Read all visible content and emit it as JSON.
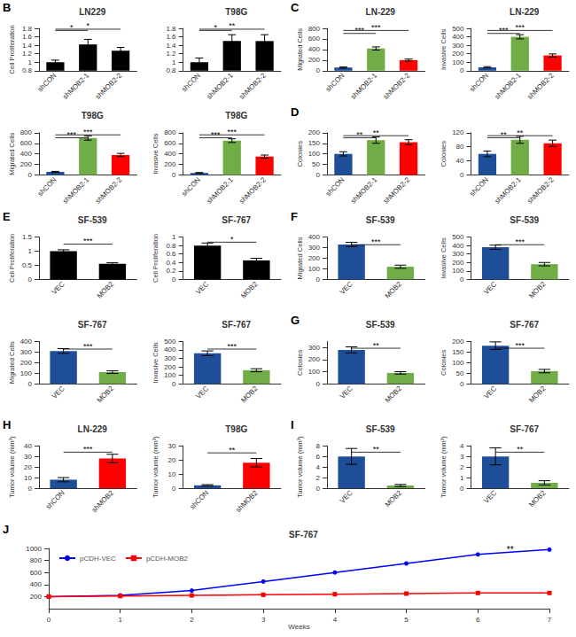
{
  "chart_data": [
    {
      "type": "bar",
      "title": "LN229",
      "ylabel": "Cell Proliferation",
      "categories": [
        "shCON",
        "shMOB2-1",
        "shMOB2-2"
      ],
      "values": [
        1.0,
        1.42,
        1.27
      ],
      "errors": [
        0.05,
        0.12,
        0.08
      ],
      "color": "#000000",
      "ylim": [
        0.8,
        1.8
      ],
      "yticks": [
        0.8,
        1,
        1.2,
        1.4,
        1.6,
        1.8
      ],
      "grid": false,
      "annotations": [
        {
          "text": "B"
        },
        {
          "text": "*",
          "from": "shCON",
          "to": "shMOB2-1",
          "y": 1.75
        },
        {
          "text": "*",
          "from": "shCON",
          "to": "shMOB2-2",
          "y": 1.78
        }
      ]
    },
    {
      "type": "bar",
      "title": "T98G",
      "categories": [
        "shCON",
        "shMOB2-1",
        "shMOB2-2"
      ],
      "values": [
        1.0,
        1.5,
        1.5
      ],
      "errors": [
        0.1,
        0.15,
        0.15
      ],
      "color": "#000000",
      "ylim": [
        0.8,
        1.8
      ],
      "yticks": [
        0.8,
        1,
        1.2,
        1.4,
        1.6,
        1.8
      ],
      "grid": false,
      "annotations": [
        {
          "text": "*",
          "from": "shCON",
          "to": "shMOB2-1",
          "y": 1.75
        },
        {
          "text": "**",
          "from": "shCON",
          "to": "shMOB2-2",
          "y": 1.78
        }
      ]
    },
    {
      "type": "bar",
      "title": "LN-229",
      "ylabel": "Migrated Cells",
      "categories": [
        "shCON",
        "shMOB2-1",
        "shMOB2-2"
      ],
      "values": [
        60,
        420,
        200
      ],
      "errors": [
        10,
        30,
        20
      ],
      "colors": [
        "#1f4e99",
        "#70ad47",
        "#ff0000"
      ],
      "ylim": [
        0,
        800
      ],
      "yticks": [
        0,
        200,
        400,
        600,
        800
      ],
      "grid": false,
      "annotations": [
        {
          "text": "C"
        },
        {
          "text": "***",
          "from": "shCON",
          "to": "shMOB2-1",
          "y": 704
        },
        {
          "text": "***",
          "from": "shCON",
          "to": "shMOB2-2",
          "y": 760
        }
      ]
    },
    {
      "type": "bar",
      "title": "LN-229",
      "ylabel": "Invasive Cells",
      "categories": [
        "shCON",
        "shMOB2-1",
        "shMOB2-2"
      ],
      "values": [
        40,
        400,
        180
      ],
      "errors": [
        8,
        25,
        18
      ],
      "colors": [
        "#1f4e99",
        "#70ad47",
        "#ff0000"
      ],
      "ylim": [
        0,
        500
      ],
      "yticks": [
        0,
        100,
        200,
        300,
        400,
        500
      ],
      "grid": false,
      "annotations": [
        {
          "text": "***",
          "from": "shCON",
          "to": "shMOB2-1",
          "y": 440
        },
        {
          "text": "***",
          "from": "shCON",
          "to": "shMOB2-2",
          "y": 475
        }
      ]
    },
    {
      "type": "bar",
      "title": "T98G",
      "ylabel": "Migrated Cells",
      "categories": [
        "shCON",
        "shMOB2-1",
        "shMOB2-2"
      ],
      "values": [
        60,
        700,
        380
      ],
      "errors": [
        10,
        40,
        30
      ],
      "colors": [
        "#1f4e99",
        "#70ad47",
        "#ff0000"
      ],
      "ylim": [
        0,
        800
      ],
      "yticks": [
        0,
        200,
        400,
        600,
        800
      ],
      "grid": false,
      "annotations": [
        {
          "text": "***",
          "from": "shCON",
          "to": "shMOB2-1",
          "y": 704
        },
        {
          "text": "***",
          "from": "shCON",
          "to": "shMOB2-2",
          "y": 760
        }
      ]
    },
    {
      "type": "bar",
      "title": "T98G",
      "ylabel": "Invasive Cells",
      "categories": [
        "shCON",
        "shMOB2-1",
        "shMOB2-2"
      ],
      "values": [
        40,
        650,
        350
      ],
      "errors": [
        8,
        35,
        28
      ],
      "colors": [
        "#1f4e99",
        "#70ad47",
        "#ff0000"
      ],
      "ylim": [
        0,
        800
      ],
      "yticks": [
        0,
        200,
        400,
        600,
        800
      ],
      "grid": false,
      "annotations": [
        {
          "text": "***",
          "from": "shCON",
          "to": "shMOB2-1",
          "y": 704
        },
        {
          "text": "***",
          "from": "shCON",
          "to": "shMOB2-2",
          "y": 760
        }
      ]
    },
    {
      "type": "bar",
      "ylabel": "Colonies",
      "categories": [
        "shCON",
        "shMOB2-1",
        "shMOB2-2"
      ],
      "values": [
        100,
        165,
        155
      ],
      "errors": [
        10,
        15,
        12
      ],
      "colors": [
        "#1f4e99",
        "#70ad47",
        "#ff0000"
      ],
      "ylim": [
        0,
        200
      ],
      "yticks": [
        0,
        50,
        100,
        150,
        200
      ],
      "grid": false,
      "annotations": [
        {
          "text": "D"
        },
        {
          "text": "**",
          "from": "shCON",
          "to": "shMOB2-1",
          "y": 176
        },
        {
          "text": "**",
          "from": "shCON",
          "to": "shMOB2-2",
          "y": 186
        }
      ]
    },
    {
      "type": "bar",
      "ylabel": "Colonies",
      "categories": [
        "shCON",
        "shMOB2-1",
        "shMOB2-2"
      ],
      "values": [
        60,
        100,
        90
      ],
      "errors": [
        8,
        10,
        9
      ],
      "colors": [
        "#1f4e99",
        "#70ad47",
        "#ff0000"
      ],
      "ylim": [
        0,
        120
      ],
      "yticks": [
        0,
        40,
        80,
        120
      ],
      "grid": false,
      "annotations": [
        {
          "text": "**",
          "from": "shCON",
          "to": "shMOB2-1",
          "y": 105.6
        },
        {
          "text": "**",
          "from": "shCON",
          "to": "shMOB2-2",
          "y": 111.6
        }
      ]
    },
    {
      "type": "bar",
      "title": "SF-539",
      "ylabel": "Cell Proliferation",
      "categories": [
        "VEC",
        "MOB2"
      ],
      "values": [
        1.0,
        0.55
      ],
      "errors": [
        0.05,
        0.04
      ],
      "color": "#000000",
      "ylim": [
        0,
        1.5
      ],
      "yticks": [
        0,
        0.5,
        1,
        1.5
      ],
      "grid": false,
      "annotations": [
        {
          "text": "E"
        },
        {
          "text": "***",
          "from": "VEC",
          "to": "MOB2",
          "y": 1.25
        }
      ]
    },
    {
      "type": "bar",
      "title": "SF-767",
      "ylabel": "Cell Proliferation",
      "categories": [
        "VEC",
        "MOB2"
      ],
      "values": [
        0.8,
        0.45
      ],
      "errors": [
        0.06,
        0.05
      ],
      "color": "#000000",
      "ylim": [
        0,
        1.0
      ],
      "yticks": [
        0,
        0.2,
        0.4,
        0.6,
        0.8,
        1
      ],
      "grid": false,
      "annotations": [
        {
          "text": "*",
          "from": "VEC",
          "to": "MOB2",
          "y": 0.88
        }
      ]
    },
    {
      "type": "bar",
      "title": "SF-539",
      "ylabel": "Migrated Cells",
      "categories": [
        "VEC",
        "MOB2"
      ],
      "values": [
        330,
        120
      ],
      "errors": [
        20,
        15
      ],
      "colors": [
        "#1f4e99",
        "#70ad47"
      ],
      "ylim": [
        0,
        400
      ],
      "yticks": [
        0,
        100,
        200,
        300,
        400
      ],
      "grid": false,
      "annotations": [
        {
          "text": "F"
        },
        {
          "text": "***",
          "from": "VEC",
          "to": "MOB2",
          "y": 328
        }
      ]
    },
    {
      "type": "bar",
      "title": "SF-539",
      "ylabel": "Invasive Cells",
      "categories": [
        "VEC",
        "MOB2"
      ],
      "values": [
        380,
        180
      ],
      "errors": [
        25,
        20
      ],
      "colors": [
        "#1f4e99",
        "#70ad47"
      ],
      "ylim": [
        0,
        500
      ],
      "yticks": [
        0,
        100,
        200,
        300,
        400,
        500
      ],
      "grid": false,
      "annotations": [
        {
          "text": "***",
          "from": "VEC",
          "to": "MOB2",
          "y": 410
        }
      ]
    },
    {
      "type": "bar",
      "title": "SF-767",
      "ylabel": "Migrated Cells",
      "categories": [
        "VEC",
        "MOB2"
      ],
      "values": [
        310,
        110
      ],
      "errors": [
        22,
        12
      ],
      "colors": [
        "#1f4e99",
        "#70ad47"
      ],
      "ylim": [
        0,
        400
      ],
      "yticks": [
        0,
        100,
        200,
        300,
        400
      ],
      "grid": false,
      "annotations": [
        {
          "text": "***",
          "from": "VEC",
          "to": "MOB2",
          "y": 328
        }
      ]
    },
    {
      "type": "bar",
      "title": "SF-767",
      "ylabel": "Invasive Cells",
      "categories": [
        "VEC",
        "MOB2"
      ],
      "values": [
        360,
        160
      ],
      "errors": [
        28,
        18
      ],
      "colors": [
        "#1f4e99",
        "#70ad47"
      ],
      "ylim": [
        0,
        500
      ],
      "yticks": [
        0,
        100,
        200,
        300,
        400,
        500
      ],
      "grid": false,
      "annotations": [
        {
          "text": "***",
          "from": "VEC",
          "to": "MOB2",
          "y": 410
        }
      ]
    },
    {
      "type": "bar",
      "title": "SF-539",
      "ylabel": "Colonies",
      "categories": [
        "VEC",
        "MOB2"
      ],
      "values": [
        280,
        90
      ],
      "errors": [
        25,
        10
      ],
      "colors": [
        "#1f4e99",
        "#70ad47"
      ],
      "ylim": [
        0,
        350
      ],
      "yticks": [
        0,
        100,
        200,
        300
      ],
      "grid": false,
      "annotations": [
        {
          "text": "G"
        },
        {
          "text": "**",
          "from": "VEC",
          "to": "MOB2",
          "y": 294
        }
      ]
    },
    {
      "type": "bar",
      "title": "SF-767",
      "ylabel": "Colonies",
      "categories": [
        "VEC",
        "MOB2"
      ],
      "values": [
        180,
        60
      ],
      "errors": [
        18,
        8
      ],
      "colors": [
        "#1f4e99",
        "#70ad47"
      ],
      "ylim": [
        0,
        200
      ],
      "yticks": [
        0,
        50,
        100,
        150,
        200
      ],
      "grid": false,
      "annotations": [
        {
          "text": "***",
          "from": "VEC",
          "to": "MOB2",
          "y": 168
        }
      ]
    },
    {
      "type": "bar",
      "title": "LN-229",
      "ylabel": "Tumor volume (mm³)",
      "categories": [
        "shCON",
        "shMOB2"
      ],
      "values": [
        8,
        28
      ],
      "errors": [
        2,
        4
      ],
      "colors": [
        "#1f4e99",
        "#ff0000"
      ],
      "ylim": [
        0,
        40
      ],
      "yticks": [
        0,
        10,
        20,
        30,
        40
      ],
      "grid": false,
      "annotations": [
        {
          "text": "H"
        },
        {
          "text": "***",
          "from": "shCON",
          "to": "shMOB2",
          "y": 34
        }
      ]
    },
    {
      "type": "bar",
      "title": "T98G",
      "ylabel": "Tumor volume (mm³)",
      "categories": [
        "shCON",
        "shMOB2"
      ],
      "values": [
        2,
        18
      ],
      "errors": [
        0.5,
        3
      ],
      "colors": [
        "#1f4e99",
        "#ff0000"
      ],
      "ylim": [
        0,
        30
      ],
      "yticks": [
        0,
        10,
        20,
        30
      ],
      "grid": false,
      "annotations": [
        {
          "text": "**",
          "from": "shCON",
          "to": "shMOB2",
          "y": 25
        }
      ]
    },
    {
      "type": "bar",
      "title": "SF-539",
      "ylabel": "Tumor volume (mm³)",
      "categories": [
        "VEC",
        "MOB2"
      ],
      "values": [
        6,
        0.5
      ],
      "errors": [
        1.5,
        0.2
      ],
      "colors": [
        "#1f4e99",
        "#70ad47"
      ],
      "ylim": [
        0,
        8
      ],
      "yticks": [
        0,
        2,
        4,
        6,
        8
      ],
      "grid": false,
      "annotations": [
        {
          "text": "I"
        },
        {
          "text": "**",
          "from": "VEC",
          "to": "MOB2",
          "y": 6.8
        }
      ]
    },
    {
      "type": "bar",
      "title": "SF-767",
      "ylabel": "Tumor volume (mm³)",
      "categories": [
        "VEC",
        "MOB2"
      ],
      "values": [
        3,
        0.5
      ],
      "errors": [
        0.8,
        0.2
      ],
      "colors": [
        "#1f4e99",
        "#70ad47"
      ],
      "ylim": [
        0,
        4
      ],
      "yticks": [
        0,
        1,
        2,
        3,
        4
      ],
      "grid": false,
      "annotations": [
        {
          "text": "**",
          "from": "VEC",
          "to": "MOB2",
          "y": 3.4
        }
      ]
    },
    {
      "type": "line",
      "title": "SF-767",
      "xlabel": "Weeks",
      "x": [
        0,
        1,
        2,
        3,
        4,
        5,
        6,
        7
      ],
      "series": [
        {
          "name": "pCDH-VEC",
          "color": "#0000ff",
          "marker": "circle",
          "values": [
            200,
            220,
            300,
            450,
            600,
            750,
            900,
            980
          ]
        },
        {
          "name": "pCDH-MOB2",
          "color": "#ff0000",
          "marker": "square",
          "values": [
            200,
            210,
            220,
            230,
            240,
            250,
            260,
            260
          ]
        }
      ],
      "xlim": [
        0,
        7
      ],
      "xticks": [
        0,
        1,
        2,
        3,
        4,
        5,
        6,
        7
      ],
      "ylim": [
        0,
        1000
      ],
      "yticks": [
        200,
        400,
        600,
        800,
        1000
      ],
      "grid": false,
      "legend": "upper left",
      "annotations": [
        {
          "text": "J"
        },
        {
          "text": "**",
          "x": 6.5,
          "y": 900
        }
      ]
    }
  ]
}
